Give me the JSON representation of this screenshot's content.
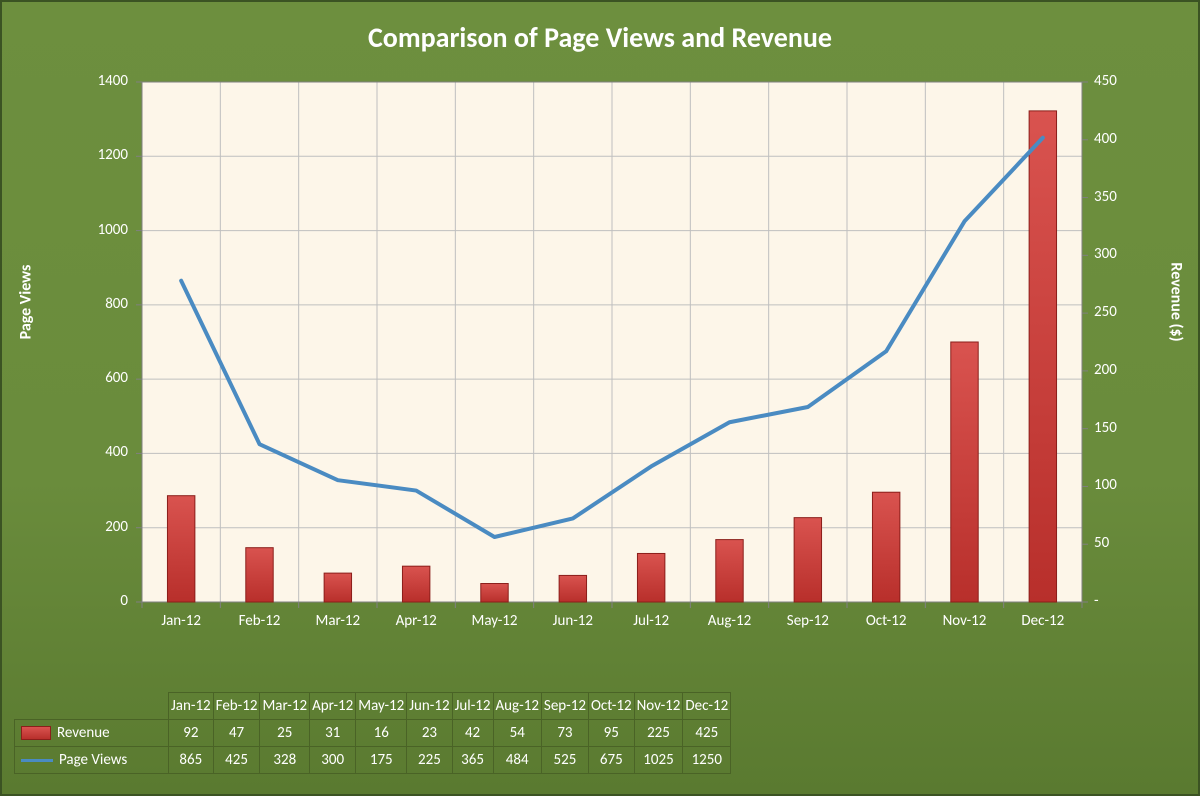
{
  "chart": {
    "title": "Comparison of Page Views and Revenue",
    "title_fontsize": 28,
    "title_color": "#ffffff",
    "background_gradient": [
      "#6d8f3e",
      "#5a7a30"
    ],
    "border_color": "#3b5323",
    "plot_background": "#fdf6e9",
    "plot_border_color": "#808080",
    "grid_color": "#bfbfbf",
    "categories": [
      "Jan-12",
      "Feb-12",
      "Mar-12",
      "Apr-12",
      "May-12",
      "Jun-12",
      "Jul-12",
      "Aug-12",
      "Sep-12",
      "Oct-12",
      "Nov-12",
      "Dec-12"
    ],
    "left_axis": {
      "label": "Page Views",
      "min": 0,
      "max": 1400,
      "step": 200,
      "ticks": [
        0,
        200,
        400,
        600,
        800,
        1000,
        1200,
        1400
      ],
      "label_fontsize": 16,
      "tick_fontsize": 15,
      "text_color": "#ffffff"
    },
    "right_axis": {
      "label": "Revenue ($)",
      "min": 0,
      "max": 450,
      "step": 50,
      "ticks": [
        "-",
        "50",
        "100",
        "150",
        "200",
        "250",
        "300",
        "350",
        "400",
        "450"
      ],
      "tick_values": [
        0,
        50,
        100,
        150,
        200,
        250,
        300,
        350,
        400,
        450
      ],
      "label_fontsize": 16,
      "tick_fontsize": 15,
      "text_color": "#ffffff"
    },
    "series": {
      "revenue": {
        "type": "bar",
        "axis": "right",
        "label": "Revenue",
        "values": [
          92,
          47,
          25,
          31,
          16,
          23,
          42,
          54,
          73,
          95,
          225,
          425
        ],
        "fill_gradient": [
          "#d9534f",
          "#b82f2b"
        ],
        "border_color": "#8b1e1a",
        "bar_width_ratio": 0.35
      },
      "page_views": {
        "type": "line",
        "axis": "left",
        "label": "Page Views",
        "values": [
          865,
          425,
          328,
          300,
          175,
          225,
          365,
          484,
          525,
          675,
          1025,
          1250
        ],
        "line_color": "#4a8bc2",
        "line_width": 4
      }
    },
    "datatable": {
      "headers": [
        "Jan-12",
        "Feb-12",
        "Mar-12",
        "Apr-12",
        "May-12",
        "Jun-12",
        "Jul-12",
        "Aug-12",
        "Sep-12",
        "Oct-12",
        "Nov-12",
        "Dec-12"
      ],
      "rows": [
        {
          "label": "Revenue",
          "swatch": "bar",
          "values": [
            92,
            47,
            25,
            31,
            16,
            23,
            42,
            54,
            73,
            95,
            225,
            425
          ]
        },
        {
          "label": "Page Views",
          "swatch": "line",
          "values": [
            865,
            425,
            328,
            300,
            175,
            225,
            365,
            484,
            525,
            675,
            1025,
            1250
          ]
        }
      ],
      "border_color": "#4a6326",
      "text_color": "#ffffff",
      "fontsize": 15
    }
  }
}
